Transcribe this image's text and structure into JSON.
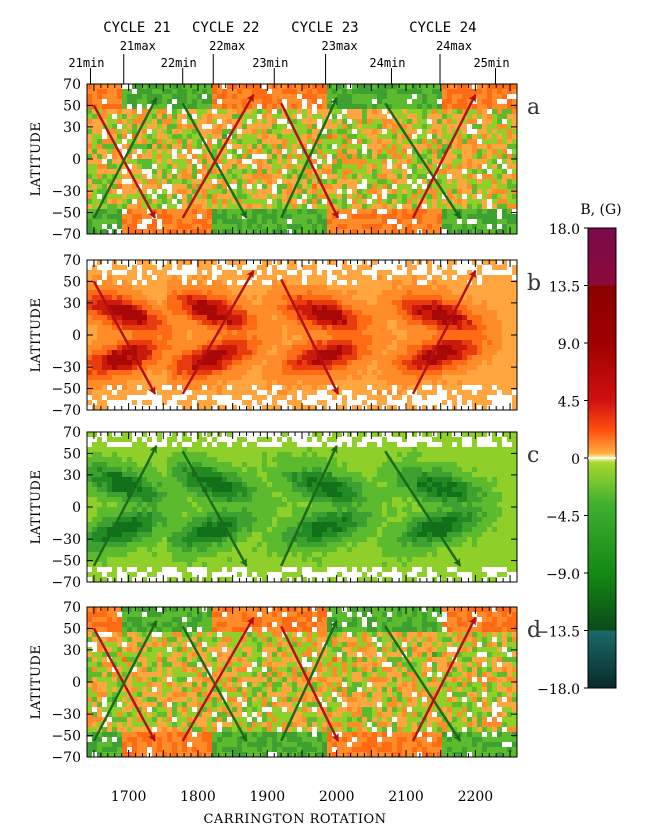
{
  "chart_data": {
    "type": "heatmap",
    "title": "",
    "xlabel": "CARRINGTON ROTATION",
    "ylabel": "LATITUDE",
    "xlim": [
      1640,
      2260
    ],
    "ylim": [
      -70,
      70
    ],
    "x_ticks": [
      1700,
      1800,
      1900,
      2000,
      2100,
      2200
    ],
    "y_ticks": [
      -70,
      -50,
      -30,
      0,
      30,
      50,
      70
    ],
    "cycles": [
      {
        "name": "CYCLE 21",
        "center": 1712
      },
      {
        "name": "CYCLE 22",
        "center": 1840
      },
      {
        "name": "CYCLE 23",
        "center": 1983
      },
      {
        "name": "CYCLE 24",
        "center": 2153
      }
    ],
    "cycle_markers": [
      {
        "label": "21min",
        "rotation": 1645
      },
      {
        "label": "21max",
        "rotation": 1693
      },
      {
        "label": "22min",
        "rotation": 1778
      },
      {
        "label": "22max",
        "rotation": 1822
      },
      {
        "label": "23min",
        "rotation": 1910
      },
      {
        "label": "23max",
        "rotation": 1984
      },
      {
        "label": "24min",
        "rotation": 2079
      },
      {
        "label": "24max",
        "rotation": 2149
      },
      {
        "label": "25min",
        "rotation": 2229
      }
    ],
    "colorbar": {
      "title": "B, (G)",
      "min": -18,
      "max": 18,
      "ticks": [
        18.0,
        13.5,
        9.0,
        4.5,
        0,
        -4.5,
        -9.0,
        -13.5,
        -18.0
      ],
      "tick_labels": [
        "18.0",
        "13.5",
        "9.0",
        "4.5",
        "0",
        "−4.5",
        "−9.0",
        "−13.5",
        "−18.0"
      ]
    },
    "panels": [
      {
        "label": "a",
        "polarity": "mixed",
        "arrow_set": "mixed"
      },
      {
        "label": "b",
        "polarity": "positive",
        "arrow_set": "positive"
      },
      {
        "label": "c",
        "polarity": "negative",
        "arrow_set": "negative"
      },
      {
        "label": "d",
        "polarity": "mixed",
        "arrow_set": "mixed"
      }
    ],
    "arrows_mixed": [
      {
        "from": [
          1650,
          50
        ],
        "to": [
          1738,
          -55
        ],
        "color": "#b01010"
      },
      {
        "from": [
          1650,
          -55
        ],
        "to": [
          1740,
          57
        ],
        "color": "#1a6a1a"
      },
      {
        "from": [
          1778,
          52
        ],
        "to": [
          1870,
          -55
        ],
        "color": "#1a6a1a"
      },
      {
        "from": [
          1778,
          -55
        ],
        "to": [
          1880,
          60
        ],
        "color": "#b01010"
      },
      {
        "from": [
          1920,
          -55
        ],
        "to": [
          2000,
          57
        ],
        "color": "#1a6a1a"
      },
      {
        "from": [
          1920,
          52
        ],
        "to": [
          2002,
          -55
        ],
        "color": "#b01010"
      },
      {
        "from": [
          2070,
          52
        ],
        "to": [
          2178,
          -55
        ],
        "color": "#1a6a1a"
      },
      {
        "from": [
          2110,
          -55
        ],
        "to": [
          2200,
          60
        ],
        "color": "#b01010"
      }
    ],
    "arrows_positive": [
      {
        "from": [
          1650,
          50
        ],
        "to": [
          1738,
          -55
        ],
        "color": "#b01010"
      },
      {
        "from": [
          1778,
          -55
        ],
        "to": [
          1880,
          60
        ],
        "color": "#b01010"
      },
      {
        "from": [
          1920,
          52
        ],
        "to": [
          2002,
          -55
        ],
        "color": "#b01010"
      },
      {
        "from": [
          2110,
          -55
        ],
        "to": [
          2200,
          60
        ],
        "color": "#b01010"
      }
    ],
    "arrows_negative": [
      {
        "from": [
          1650,
          -55
        ],
        "to": [
          1740,
          57
        ],
        "color": "#1a6a1a"
      },
      {
        "from": [
          1778,
          52
        ],
        "to": [
          1870,
          -55
        ],
        "color": "#1a6a1a"
      },
      {
        "from": [
          1920,
          -55
        ],
        "to": [
          2000,
          57
        ],
        "color": "#1a6a1a"
      },
      {
        "from": [
          2070,
          52
        ],
        "to": [
          2178,
          -55
        ],
        "color": "#1a6a1a"
      }
    ]
  }
}
